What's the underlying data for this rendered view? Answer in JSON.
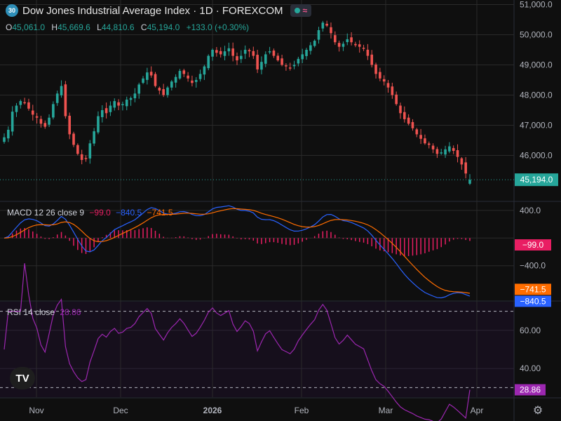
{
  "header": {
    "badge": "30",
    "title": "Dow Jones Industrial Average Index · 1D · FOREXCOM",
    "ohlc": [
      {
        "k": "O",
        "v": "45,061.0"
      },
      {
        "k": "H",
        "v": "45,669.6"
      },
      {
        "k": "L",
        "v": "44,810.6"
      },
      {
        "k": "C",
        "v": "45,194.0"
      },
      {
        "k": "",
        "v": "+133.0 (+0.30%)"
      }
    ]
  },
  "colors": {
    "up": "#26a69a",
    "down": "#ef5350",
    "macd": "#2962ff",
    "signal": "#ff6d00",
    "hist": "#e91e63",
    "rsi": "#9c27b0",
    "bg": "#0f0f0f",
    "grid": "#2a2a2a"
  },
  "icons": {
    "logo": "tradingview-logo-icon",
    "settings": "gear-icon"
  },
  "chart_data": [
    {
      "type": "candlestick",
      "title": "Dow Jones Industrial Average Index · 1D · FOREXCOM",
      "x_ticks": [
        "Nov",
        "Dec",
        "2026",
        "Feb",
        "Mar",
        "Apr"
      ],
      "y_ticks": [
        46000,
        47000,
        48000,
        49000,
        50000,
        51000
      ],
      "y_tick_labels": [
        "46,000.0",
        "47,000.0",
        "48,000.0",
        "49,000.0",
        "50,000.0",
        "51,000.0"
      ],
      "ylim": [
        44500,
        51150
      ],
      "last_price": 45194.0,
      "last_price_label": "45,194.0",
      "closes": [
        46600,
        46850,
        47450,
        47650,
        47800,
        47750,
        47550,
        47350,
        47250,
        47050,
        46950,
        47250,
        47700,
        48050,
        48300,
        47300,
        46700,
        46350,
        46050,
        45850,
        45900,
        46400,
        46800,
        47300,
        47500,
        47400,
        47650,
        47800,
        47650,
        47700,
        47850,
        47900,
        48050,
        48350,
        48550,
        48750,
        48650,
        48300,
        48150,
        48000,
        48250,
        48450,
        48600,
        48800,
        48700,
        48550,
        48400,
        48500,
        48700,
        48950,
        49300,
        49500,
        49400,
        49350,
        49450,
        49550,
        49300,
        49150,
        49300,
        49500,
        49450,
        49300,
        48850,
        49100,
        49350,
        49450,
        49300,
        49150,
        49000,
        48950,
        48900,
        49000,
        49200,
        49350,
        49500,
        49650,
        49800,
        50150,
        50400,
        50300,
        50050,
        49750,
        49600,
        49700,
        49850,
        49750,
        49650,
        49600,
        49550,
        49300,
        49000,
        48700,
        48550,
        48450,
        48250,
        48000,
        47700,
        47400,
        47200,
        47050,
        46900,
        46700,
        46550,
        46400,
        46350,
        46200,
        46050,
        46100,
        46200,
        46300,
        46150,
        45950,
        45700,
        45400,
        45194
      ]
    },
    {
      "type": "line",
      "title": "MACD 12 26 close 9",
      "legend": [
        {
          "name": "MACD 12 26 close 9",
          "color": "#d1d4dc"
        },
        {
          "name": "−99.0",
          "color": "#e91e63"
        },
        {
          "name": "−840.5",
          "color": "#2962ff"
        },
        {
          "name": "−741.5",
          "color": "#ff6d00"
        }
      ],
      "y_ticks": [
        400,
        0,
        -400
      ],
      "y_tick_labels": [
        "400.0",
        "",
        "−400.0"
      ],
      "ylim": [
        -900,
        520
      ],
      "labels": [
        {
          "text": "−99.0",
          "value": -99.0,
          "color": "#e91e63"
        },
        {
          "text": "−741.5",
          "value": -741.5,
          "color": "#ff6d00"
        },
        {
          "text": "−840.5",
          "value": -840.5,
          "color": "#2962ff"
        }
      ]
    },
    {
      "type": "line",
      "title": "RSI 14 close",
      "legend": [
        {
          "name": "RSI 14 close",
          "color": "#d1d4dc"
        },
        {
          "name": "28.86",
          "color": "#9c27b0"
        }
      ],
      "y_ticks": [
        60,
        40
      ],
      "y_tick_labels": [
        "60.00",
        "40.00"
      ],
      "bands": [
        70,
        30
      ],
      "ylim": [
        25,
        75
      ],
      "last_value": 28.86,
      "last_value_label": "28.86"
    }
  ]
}
